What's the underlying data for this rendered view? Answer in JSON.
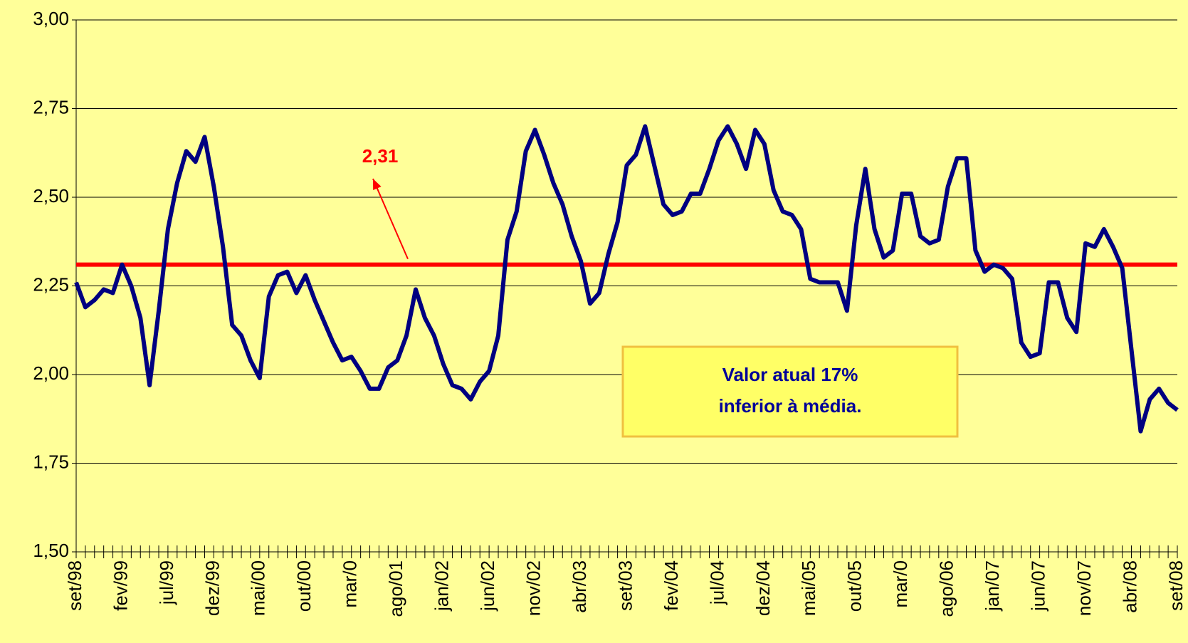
{
  "chart_data": {
    "type": "line",
    "categories": [
      "set/98",
      null,
      null,
      null,
      null,
      "fev/99",
      null,
      null,
      null,
      null,
      "jul/99",
      null,
      null,
      null,
      null,
      "dez/99",
      null,
      null,
      null,
      null,
      "mai/00",
      null,
      null,
      null,
      null,
      "out/00",
      null,
      null,
      null,
      null,
      "mar/0",
      null,
      null,
      null,
      null,
      "ago/01",
      null,
      null,
      null,
      null,
      "jan/02",
      null,
      null,
      null,
      null,
      "jun/02",
      null,
      null,
      null,
      null,
      "nov/02",
      null,
      null,
      null,
      null,
      "abr/03",
      null,
      null,
      null,
      null,
      "set/03",
      null,
      null,
      null,
      null,
      "fev/04",
      null,
      null,
      null,
      null,
      "jul/04",
      null,
      null,
      null,
      null,
      "dez/04",
      null,
      null,
      null,
      null,
      "mai/05",
      null,
      null,
      null,
      null,
      "out/05",
      null,
      null,
      null,
      null,
      "mar/0",
      null,
      null,
      null,
      null,
      "ago/06",
      null,
      null,
      null,
      null,
      "jan/07",
      null,
      null,
      null,
      null,
      "jun/07",
      null,
      null,
      null,
      null,
      "nov/07",
      null,
      null,
      null,
      null,
      "abr/08",
      null,
      null,
      null,
      null,
      "set/08"
    ],
    "values": [
      2.26,
      2.19,
      2.21,
      2.24,
      2.23,
      2.31,
      2.25,
      2.16,
      1.97,
      2.18,
      2.41,
      2.54,
      2.63,
      2.6,
      2.67,
      2.53,
      2.36,
      2.14,
      2.11,
      2.04,
      1.99,
      2.22,
      2.28,
      2.29,
      2.23,
      2.28,
      2.21,
      2.15,
      2.09,
      2.04,
      2.05,
      2.01,
      1.96,
      1.96,
      2.02,
      2.04,
      2.11,
      2.24,
      2.16,
      2.11,
      2.03,
      1.97,
      1.96,
      1.93,
      1.98,
      2.01,
      2.11,
      2.38,
      2.46,
      2.63,
      2.69,
      2.62,
      2.54,
      2.48,
      2.39,
      2.32,
      2.2,
      2.23,
      2.34,
      2.43,
      2.59,
      2.62,
      2.7,
      2.59,
      2.48,
      2.45,
      2.46,
      2.51,
      2.51,
      2.58,
      2.66,
      2.7,
      2.65,
      2.58,
      2.69,
      2.65,
      2.52,
      2.46,
      2.45,
      2.41,
      2.27,
      2.26,
      2.26,
      2.26,
      2.18,
      2.42,
      2.58,
      2.41,
      2.33,
      2.35,
      2.51,
      2.51,
      2.39,
      2.37,
      2.38,
      2.53,
      2.61,
      2.61,
      2.35,
      2.29,
      2.31,
      2.3,
      2.27,
      2.09,
      2.05,
      2.06,
      2.26,
      2.26,
      2.16,
      2.12,
      2.37,
      2.36,
      2.41,
      2.36,
      2.3,
      2.07,
      1.84,
      1.93,
      1.96,
      1.92,
      1.9
    ],
    "color": "#000080",
    "ylim": [
      1.5,
      3.0
    ],
    "yticks": [
      {
        "value": 1.5,
        "label": "1,50"
      },
      {
        "value": 1.75,
        "label": "1,75"
      },
      {
        "value": 2.0,
        "label": "2,00"
      },
      {
        "value": 2.25,
        "label": "2,25"
      },
      {
        "value": 2.5,
        "label": "2,50"
      },
      {
        "value": 2.75,
        "label": "2,75"
      },
      {
        "value": 3.0,
        "label": "3,00"
      }
    ],
    "grid": true,
    "mean_line": {
      "value": 2.31,
      "value_label": "2,31",
      "color": "#ff0000"
    },
    "annotation": [
      "Valor atual 17%",
      "inferior à média."
    ]
  }
}
